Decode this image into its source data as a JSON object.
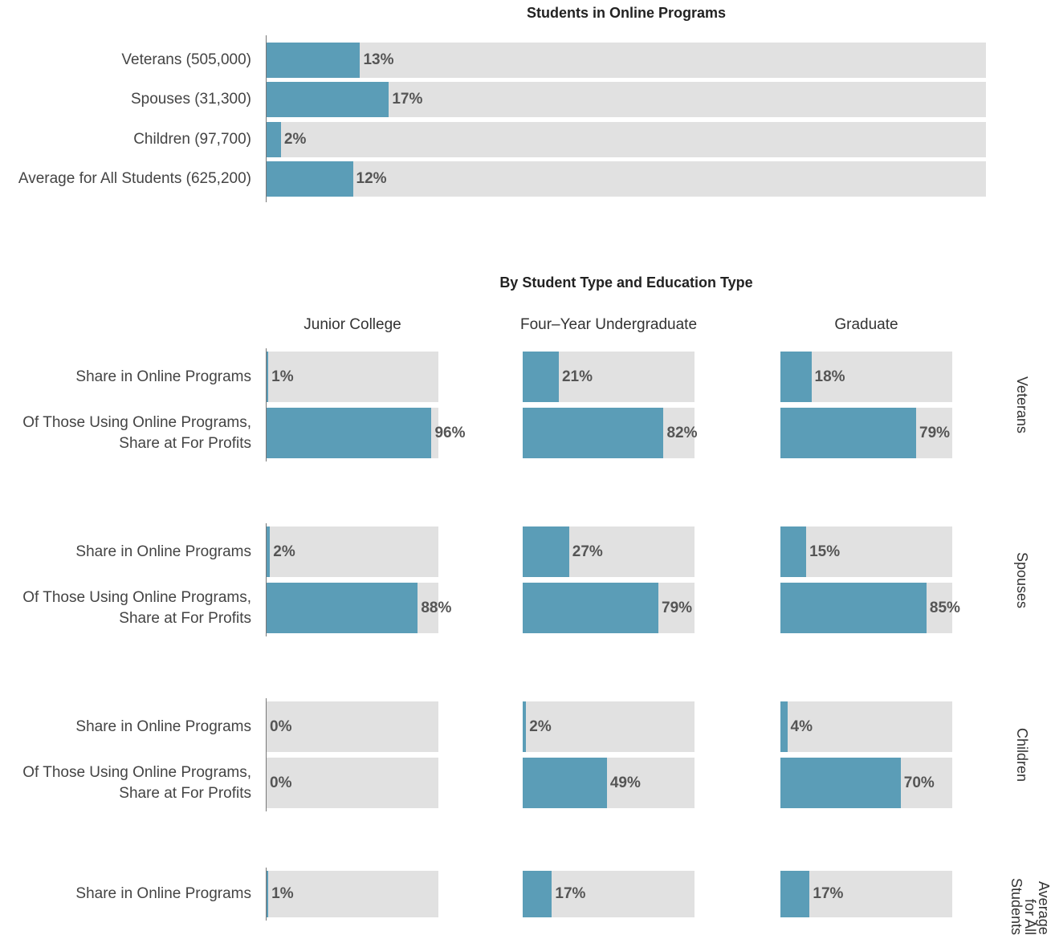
{
  "chart_data": [
    {
      "type": "bar",
      "title": "Students in Online Programs",
      "categories": [
        "Veterans (505,000)",
        "Spouses (31,300)",
        "Children (97,700)",
        "Average for All Students (625,200)"
      ],
      "values": [
        13,
        17,
        2,
        12
      ],
      "value_labels": [
        "13%",
        "17%",
        "2%",
        "12%"
      ],
      "xlim": [
        0,
        100
      ],
      "color": "#5b9db7",
      "background": "#e1e1e1"
    },
    {
      "type": "faceted_bar",
      "title": "By Student Type and Education Type",
      "columns": [
        "Junior College",
        "Four–Year Undergraduate",
        "Graduate"
      ],
      "xlim": [
        0,
        100
      ],
      "color": "#5b9db7",
      "background": "#e1e1e1",
      "panels": [
        {
          "name": "Veterans",
          "series": [
            {
              "name": "Share in Online Programs",
              "values": [
                1,
                21,
                18
              ],
              "value_labels": [
                "1%",
                "21%",
                "18%"
              ]
            },
            {
              "name": "Of Those Using Online Programs, Share at For Profits",
              "values": [
                96,
                82,
                79
              ],
              "value_labels": [
                "96%",
                "82%",
                "79%"
              ]
            }
          ]
        },
        {
          "name": "Spouses",
          "series": [
            {
              "name": "Share in Online Programs",
              "values": [
                2,
                27,
                15
              ],
              "value_labels": [
                "2%",
                "27%",
                "15%"
              ]
            },
            {
              "name": "Of Those Using Online Programs, Share at For Profits",
              "values": [
                88,
                79,
                85
              ],
              "value_labels": [
                "88%",
                "79%",
                "85%"
              ]
            }
          ]
        },
        {
          "name": "Children",
          "series": [
            {
              "name": "Share in Online Programs",
              "values": [
                0,
                2,
                4
              ],
              "value_labels": [
                "0%",
                "2%",
                "4%"
              ]
            },
            {
              "name": "Of Those Using Online Programs, Share at For Profits",
              "values": [
                0,
                49,
                70
              ],
              "value_labels": [
                "0%",
                "49%",
                "70%"
              ]
            }
          ]
        },
        {
          "name": "Average for All Students",
          "series": [
            {
              "name": "Share in Online Programs",
              "values": [
                1,
                17,
                17
              ],
              "value_labels": [
                "1%",
                "17%",
                "17%"
              ]
            }
          ]
        }
      ]
    }
  ]
}
